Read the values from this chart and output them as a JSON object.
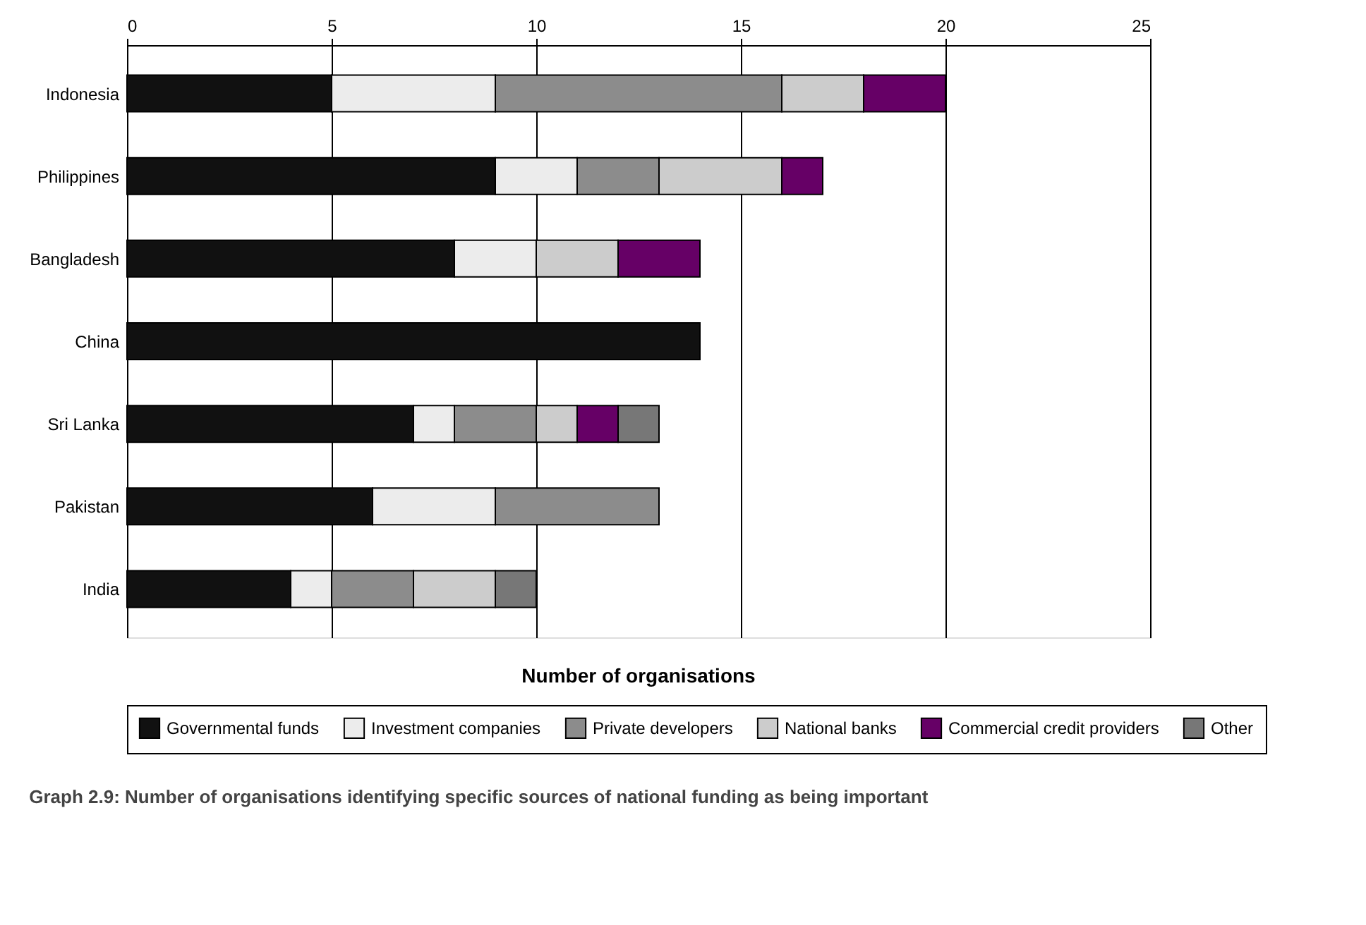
{
  "chart_data": {
    "type": "bar",
    "orientation": "horizontal",
    "stacked": true,
    "categories": [
      "Indonesia",
      "Philippines",
      "Bangladesh",
      "China",
      "Sri Lanka",
      "Pakistan",
      "India"
    ],
    "series": [
      {
        "name": "Governmental funds",
        "color": "#111111",
        "values": [
          5,
          9,
          8,
          14,
          7,
          6,
          4
        ]
      },
      {
        "name": "Investment companies",
        "color": "#ececec",
        "values": [
          4,
          2,
          2,
          null,
          1,
          3,
          1
        ]
      },
      {
        "name": "Private developers",
        "color": "#8c8c8c",
        "values": [
          7,
          2,
          null,
          null,
          2,
          4,
          2
        ]
      },
      {
        "name": "National banks",
        "color": "#cccccc",
        "values": [
          2,
          3,
          2,
          null,
          1,
          null,
          2
        ]
      },
      {
        "name": "Commercial credit providers",
        "color": "#660066",
        "values": [
          2,
          1,
          2,
          null,
          1,
          null,
          null
        ]
      },
      {
        "name": "Other",
        "color": "#777777",
        "values": [
          null,
          null,
          null,
          null,
          1,
          null,
          1
        ]
      }
    ],
    "xlim": [
      0,
      25
    ],
    "xticks": [
      0,
      5,
      10,
      15,
      20,
      25
    ],
    "grid": "x",
    "legend": "bottom",
    "xlabel": "Number of organisations",
    "annotations": [
      "Graph 2.9: Number of organisations identifying specific sources of national funding as being important"
    ]
  }
}
